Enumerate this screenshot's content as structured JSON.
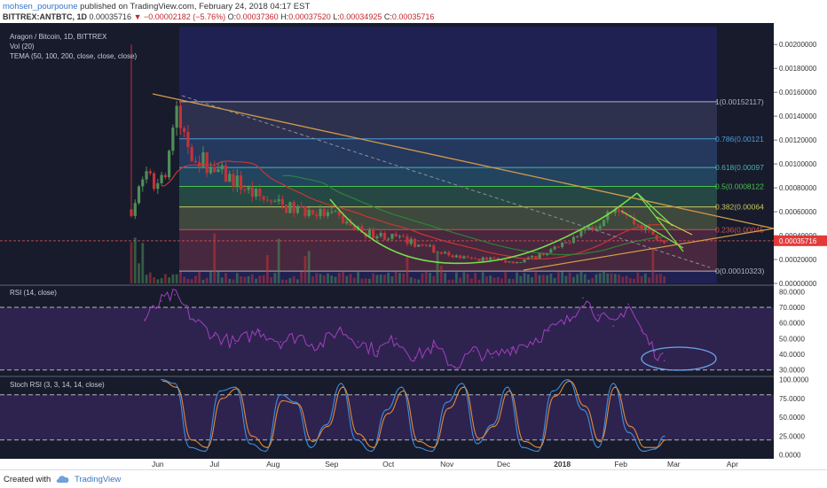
{
  "header": {
    "author": "mohsen_pourpoune",
    "published": "published on TradingView.com, February 24, 2018 04:17 EST",
    "symbol": "BITTREX:ANTBTC, 1D",
    "last": "0.00035716",
    "change": "▼ −0.00002182 (−5.76%)",
    "o_label": "O:",
    "o_value": "0.00037360",
    "h_label": "H:",
    "h_value": "0.00037520",
    "l_label": "L:",
    "l_value": "0.00034925",
    "c_label": "C:",
    "c_value": "0.00035716"
  },
  "legend": {
    "title": "Aragon / Bitcoin, 1D, BITTREX",
    "vol": "Vol (20)",
    "tema": "TEMA (50, 100, 200, close, close, close)",
    "rsi": "RSI (14, close)",
    "stoch": "Stoch RSI (3, 3, 14, 14, close)"
  },
  "footer": {
    "created": "Created with",
    "brand": "TradingView"
  },
  "colors": {
    "bg": "#171b2c",
    "up": "#4f8f58",
    "down": "#c2333a",
    "ema_red": "#c93535",
    "ema_green": "#2f8a37",
    "bowl": "#74e04a",
    "trend_orange": "#d49a4a",
    "rsi_line": "#a23fbf",
    "stoch_k": "#3d8fe0",
    "stoch_d": "#e08a3a",
    "price_tag": "#e23a3a",
    "circle": "#6aa6e8"
  },
  "chart_data": [
    {
      "type": "candlestick",
      "title": "Aragon / Bitcoin, 1D, BITTREX",
      "x_ticks": [
        "Jun",
        "Jul",
        "Aug",
        "Sep",
        "Oct",
        "Nov",
        "Dec",
        "2018",
        "Feb",
        "Mar",
        "Apr"
      ],
      "y_ticks": [
        "0.00200000",
        "0.00180000",
        "0.00160000",
        "0.00140000",
        "0.00120000",
        "0.00100000",
        "0.00080000",
        "0.00060000",
        "0.00040000",
        "0.00020000",
        "0.00000000"
      ],
      "ylim": [
        0,
        0.00215
      ],
      "last_price": "0.00035716",
      "candles": [
        {
          "t": "May 18",
          "c": 0.00062
        },
        {
          "t": "May 25",
          "c": 0.00088
        },
        {
          "t": "Jun 1",
          "c": 0.00083
        },
        {
          "t": "Jun 6",
          "c": 0.001
        },
        {
          "t": "Jun 10",
          "c": 0.00143
        },
        {
          "t": "Jun 14",
          "c": 0.00125
        },
        {
          "t": "Jun 20",
          "c": 0.00108
        },
        {
          "t": "Jun 27",
          "c": 0.001
        },
        {
          "t": "Jul 4",
          "c": 0.00092
        },
        {
          "t": "Jul 12",
          "c": 0.00086
        },
        {
          "t": "Jul 20",
          "c": 0.00076
        },
        {
          "t": "Jul 28",
          "c": 0.0007
        },
        {
          "t": "Aug 5",
          "c": 0.00065
        },
        {
          "t": "Aug 12",
          "c": 0.00062
        },
        {
          "t": "Aug 20",
          "c": 0.0006
        },
        {
          "t": "Aug 28",
          "c": 0.00058
        },
        {
          "t": "Sep 5",
          "c": 0.00055
        },
        {
          "t": "Sep 12",
          "c": 0.00047
        },
        {
          "t": "Sep 20",
          "c": 0.00042
        },
        {
          "t": "Sep 28",
          "c": 0.0004
        },
        {
          "t": "Oct 6",
          "c": 0.00038
        },
        {
          "t": "Oct 14",
          "c": 0.00034
        },
        {
          "t": "Oct 22",
          "c": 0.0003
        },
        {
          "t": "Oct 30",
          "c": 0.00025
        },
        {
          "t": "Nov 7",
          "c": 0.00022
        },
        {
          "t": "Nov 15",
          "c": 0.0002
        },
        {
          "t": "Nov 23",
          "c": 0.00021
        },
        {
          "t": "Dec 1",
          "c": 0.00019
        },
        {
          "t": "Dec 9",
          "c": 0.00018
        },
        {
          "t": "Dec 17",
          "c": 0.00022
        },
        {
          "t": "Dec 25",
          "c": 0.00027
        },
        {
          "t": "Jan 2",
          "c": 0.00032
        },
        {
          "t": "Jan 8",
          "c": 0.00042
        },
        {
          "t": "Jan 14",
          "c": 0.00046
        },
        {
          "t": "Jan 20",
          "c": 0.0005
        },
        {
          "t": "Jan 26",
          "c": 0.00065
        },
        {
          "t": "Feb 1",
          "c": 0.00064
        },
        {
          "t": "Feb 7",
          "c": 0.00052
        },
        {
          "t": "Feb 13",
          "c": 0.00046
        },
        {
          "t": "Feb 19",
          "c": 0.0004
        },
        {
          "t": "Feb 24",
          "c": 0.00036
        }
      ],
      "fibonacci": [
        {
          "label": "1(0.00152117)",
          "value": 0.00152117
        },
        {
          "label": "0.786(0.00121",
          "value": 0.00121
        },
        {
          "label": "0.618(0.00097",
          "value": 0.00097
        },
        {
          "label": "0.5(0.0008122",
          "value": 0.0008122
        },
        {
          "label": "0.382(0.00064",
          "value": 0.00064
        },
        {
          "label": "0.236(0.00045",
          "value": 0.00045
        },
        {
          "label": "0(0.00010323)",
          "value": 0.00010323
        }
      ]
    },
    {
      "type": "line",
      "title": "RSI (14, close)",
      "y_ticks": [
        "80.0000",
        "70.0000",
        "60.0000",
        "50.0000",
        "40.0000",
        "30.0000"
      ],
      "ylim": [
        27,
        83
      ],
      "bands": [
        30,
        70
      ],
      "x": [
        "May 25",
        "Jun 3",
        "Jun 10",
        "Jun 20",
        "Jul 1",
        "Jul 12",
        "Jul 25",
        "Aug 5",
        "Aug 15",
        "Aug 25",
        "Sep 5",
        "Sep 15",
        "Sep 25",
        "Oct 5",
        "Oct 15",
        "Oct 25",
        "Nov 5",
        "Nov 15",
        "Nov 25",
        "Dec 5",
        "Dec 15",
        "Dec 25",
        "Jan 5",
        "Jan 12",
        "Jan 20",
        "Jan 28",
        "Feb 5",
        "Feb 12",
        "Feb 19",
        "Feb 24"
      ],
      "values": [
        62,
        74,
        78,
        62,
        52,
        47,
        55,
        48,
        52,
        45,
        56,
        48,
        42,
        50,
        38,
        45,
        32,
        42,
        38,
        44,
        48,
        55,
        62,
        76,
        65,
        58,
        72,
        55,
        42,
        36
      ]
    },
    {
      "type": "line",
      "title": "Stoch RSI (3, 3, 14, 14, close)",
      "y_ticks": [
        "100.0000",
        "75.0000",
        "50.0000",
        "25.0000",
        "0.0000"
      ],
      "ylim": [
        -5,
        102
      ],
      "bands": [
        20,
        80
      ],
      "x": [
        "Jun 3",
        "Jun 10",
        "Jun 18",
        "Jun 26",
        "Jul 4",
        "Jul 12",
        "Jul 20",
        "Jul 28",
        "Aug 5",
        "Aug 13",
        "Aug 21",
        "Aug 29",
        "Sep 6",
        "Sep 14",
        "Sep 22",
        "Sep 30",
        "Oct 8",
        "Oct 16",
        "Oct 24",
        "Nov 1",
        "Nov 9",
        "Nov 17",
        "Nov 25",
        "Dec 3",
        "Dec 11",
        "Dec 19",
        "Dec 27",
        "Jan 4",
        "Jan 12",
        "Jan 20",
        "Jan 28",
        "Feb 5",
        "Feb 13",
        "Feb 19",
        "Feb 24"
      ],
      "series": [
        {
          "name": "%K",
          "values": [
            100,
            95,
            10,
            5,
            85,
            90,
            15,
            5,
            80,
            70,
            10,
            40,
            95,
            20,
            5,
            60,
            90,
            10,
            5,
            70,
            95,
            15,
            40,
            90,
            10,
            5,
            85,
            100,
            60,
            10,
            95,
            30,
            5,
            8,
            25
          ]
        },
        {
          "name": "%D",
          "values": [
            98,
            90,
            20,
            10,
            75,
            88,
            25,
            10,
            72,
            68,
            18,
            38,
            90,
            28,
            10,
            55,
            85,
            18,
            10,
            62,
            90,
            22,
            38,
            85,
            18,
            10,
            78,
            98,
            65,
            18,
            90,
            38,
            10,
            10,
            20
          ]
        }
      ]
    }
  ]
}
